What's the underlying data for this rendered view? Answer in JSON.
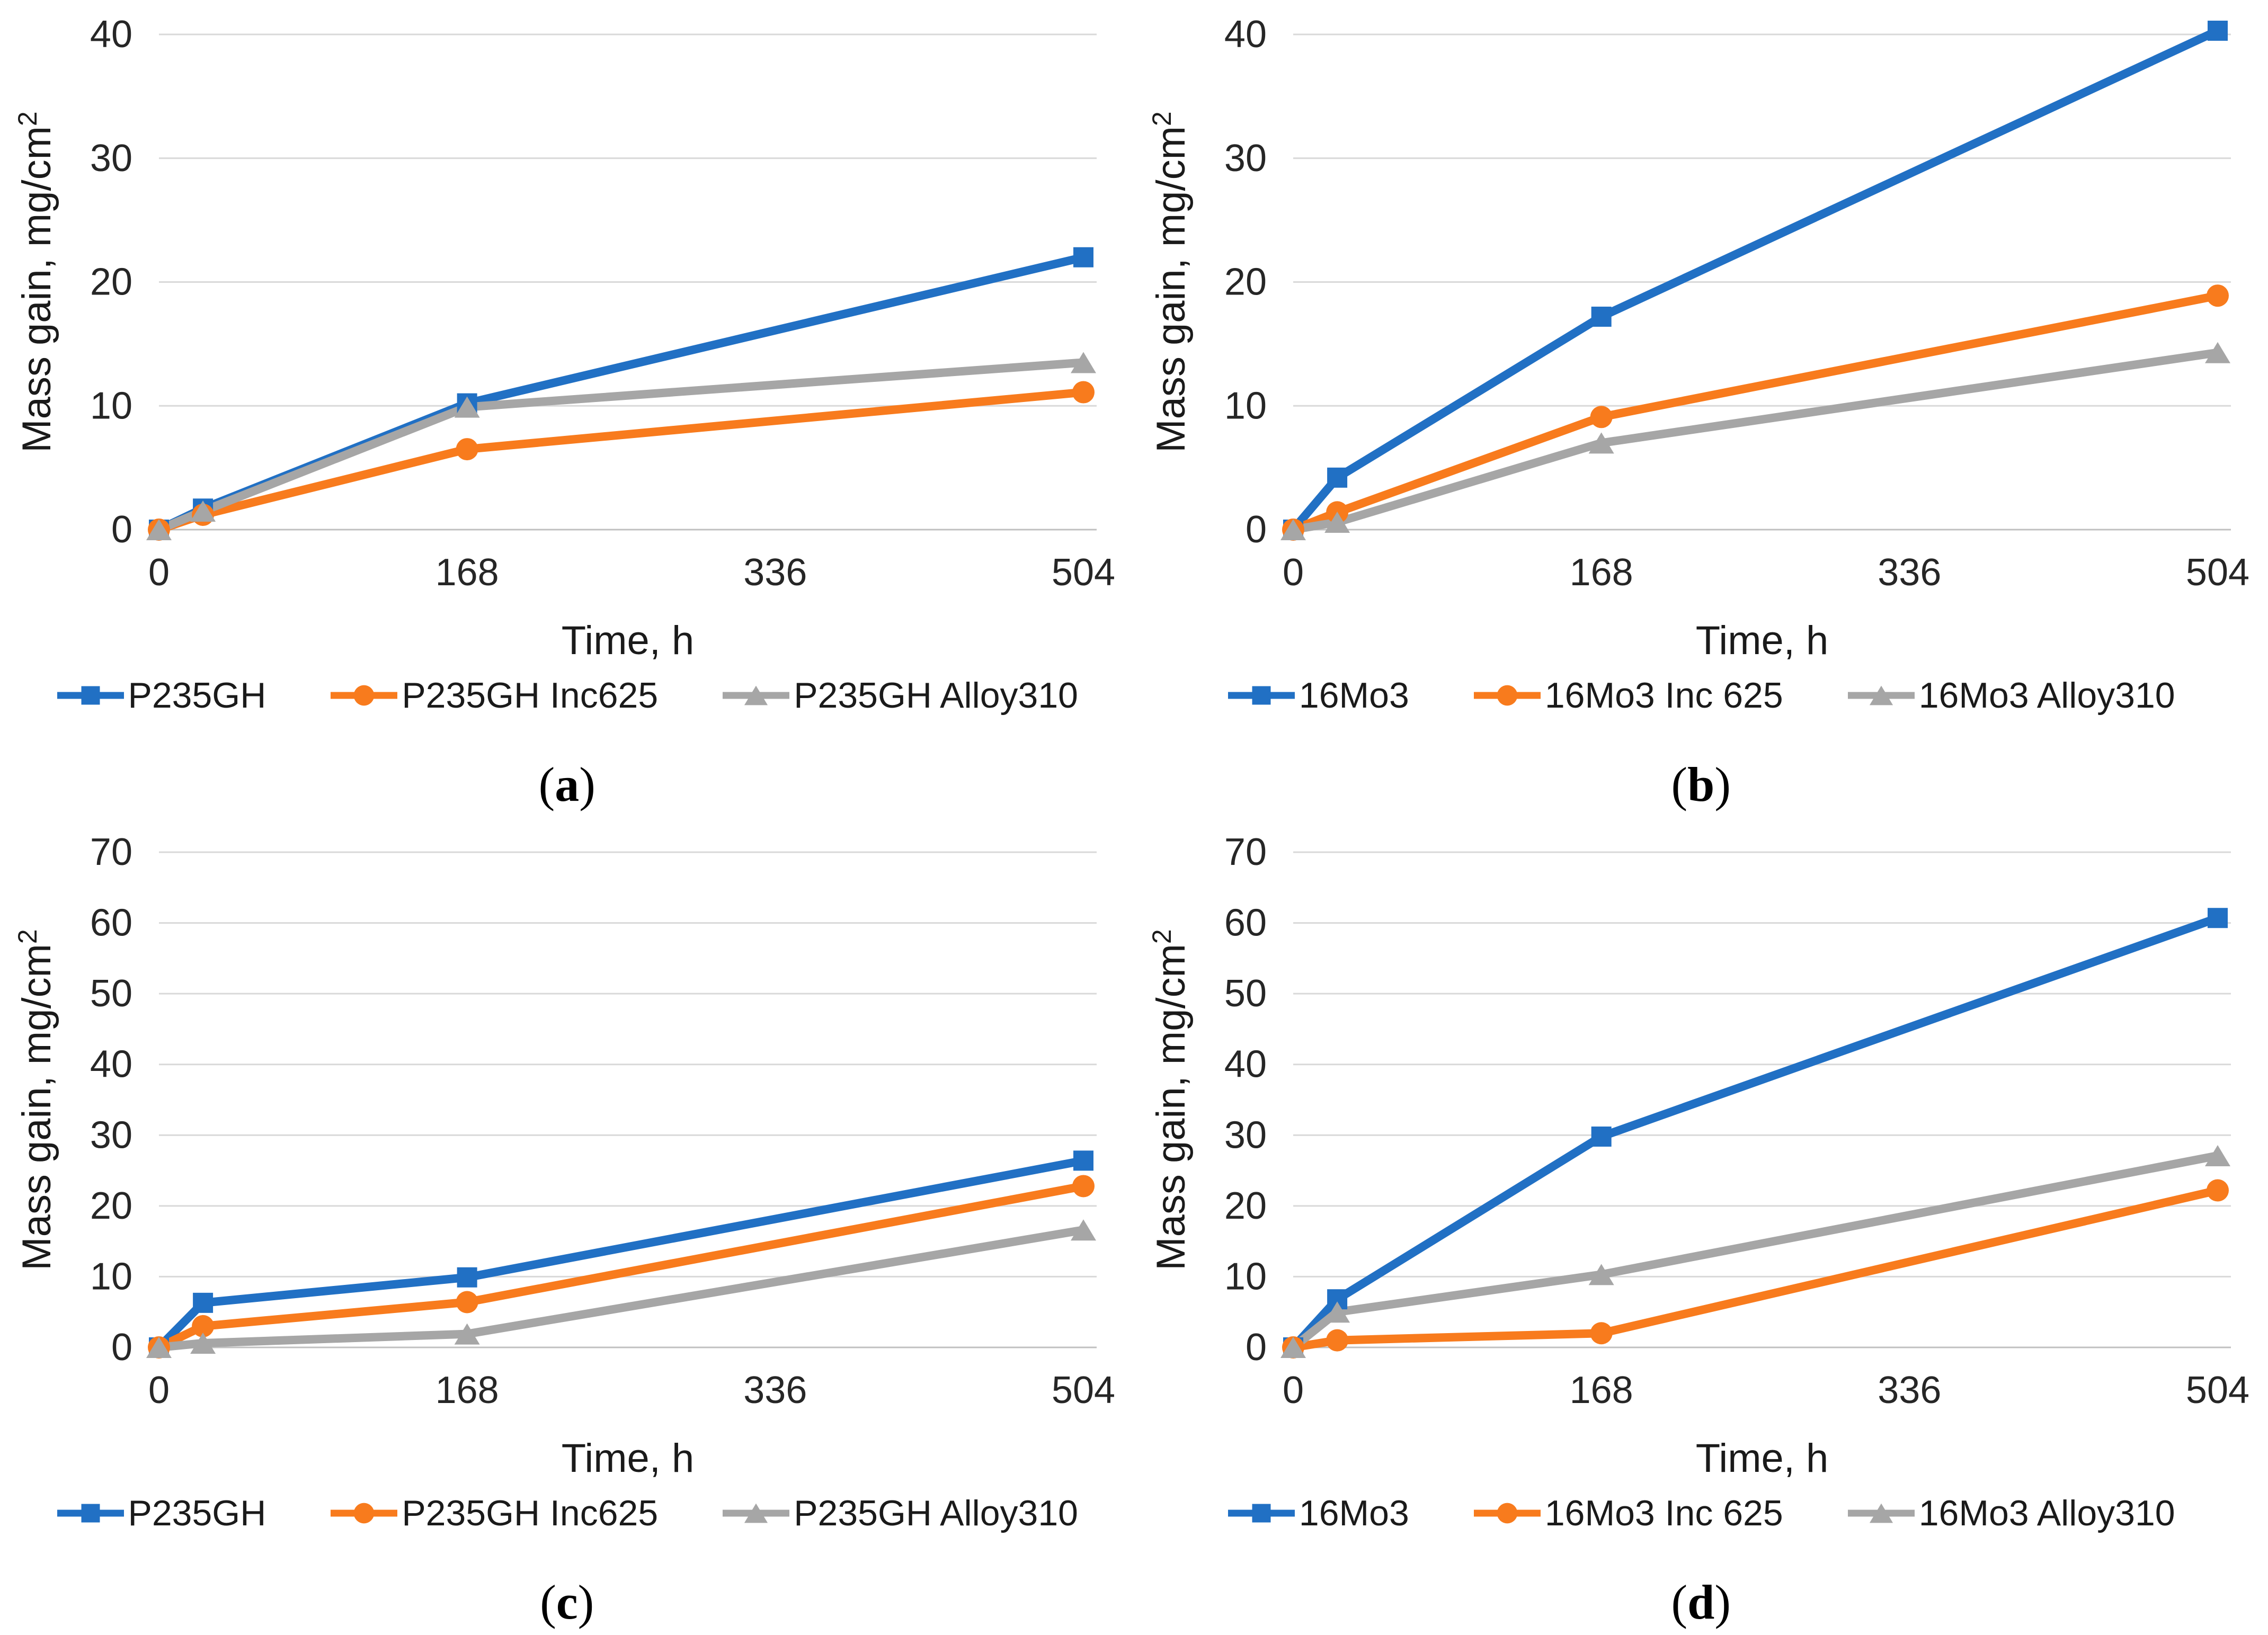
{
  "figure_colors": {
    "blue": "#2170C4",
    "orange": "#F87B1D",
    "gray": "#A6A6A6",
    "gridline": "#D9D9D9",
    "zero_line": "#C0C0C0",
    "tick_text": "#262626",
    "axis_title_text": "#1A1A1A"
  },
  "chart_data": [
    {
      "type": "line",
      "caption": {
        "open": "(",
        "letter": "a",
        "close": ")"
      },
      "xlabel": "Time, h",
      "ylabel_main": "Mass gain, mg/cm",
      "ylabel_sup": "2",
      "ylim": [
        0,
        40
      ],
      "yticks": [
        0,
        10,
        20,
        30,
        40
      ],
      "xticks": [
        0,
        168,
        336,
        504
      ],
      "x": [
        0,
        24,
        168,
        504
      ],
      "grid": true,
      "legend_position": "bottom",
      "series": [
        {
          "name": "P235GH",
          "color": "#2170C4",
          "marker": "square",
          "values": [
            0,
            1.7,
            10.2,
            22.0
          ]
        },
        {
          "name": "P235GH Inc625",
          "color": "#F87B1D",
          "marker": "circle",
          "values": [
            0,
            1.2,
            6.5,
            11.1
          ]
        },
        {
          "name": "P235GH Alloy310",
          "color": "#A6A6A6",
          "marker": "triangle",
          "values": [
            0,
            1.5,
            9.9,
            13.5
          ]
        }
      ]
    },
    {
      "type": "line",
      "caption": {
        "open": "(",
        "letter": "b",
        "close": ")"
      },
      "xlabel": "Time, h",
      "ylabel_main": "Mass gain, mg/cm",
      "ylabel_sup": "2",
      "ylim": [
        0,
        40
      ],
      "yticks": [
        0,
        10,
        20,
        30,
        40
      ],
      "xticks": [
        0,
        168,
        336,
        504
      ],
      "x": [
        0,
        24,
        168,
        504
      ],
      "grid": true,
      "legend_position": "bottom",
      "series": [
        {
          "name": "16Mo3",
          "color": "#2170C4",
          "marker": "square",
          "values": [
            0,
            4.2,
            17.2,
            40.3
          ]
        },
        {
          "name": "16Mo3 Inc 625",
          "color": "#F87B1D",
          "marker": "circle",
          "values": [
            0,
            1.4,
            9.1,
            18.9
          ]
        },
        {
          "name": "16Mo3 Alloy310",
          "color": "#A6A6A6",
          "marker": "triangle",
          "values": [
            0,
            0.6,
            7.0,
            14.3
          ]
        }
      ]
    },
    {
      "type": "line",
      "caption": {
        "open": "(",
        "letter": "c",
        "close": ")"
      },
      "xlabel": "Time, h",
      "ylabel_main": "Mass gain, mg/cm",
      "ylabel_sup": "2",
      "ylim": [
        0,
        70
      ],
      "yticks": [
        0,
        10,
        20,
        30,
        40,
        50,
        60,
        70
      ],
      "xticks": [
        0,
        168,
        336,
        504
      ],
      "x": [
        0,
        24,
        168,
        504
      ],
      "grid": true,
      "legend_position": "bottom",
      "series": [
        {
          "name": "P235GH",
          "color": "#2170C4",
          "marker": "square",
          "values": [
            0,
            6.3,
            9.9,
            26.4
          ]
        },
        {
          "name": "P235GH Inc625",
          "color": "#F87B1D",
          "marker": "circle",
          "values": [
            0,
            3.0,
            6.4,
            22.8
          ]
        },
        {
          "name": "P235GH Alloy310",
          "color": "#A6A6A6",
          "marker": "triangle",
          "values": [
            0,
            0.6,
            1.9,
            16.6
          ]
        }
      ]
    },
    {
      "type": "line",
      "caption": {
        "open": "(",
        "letter": "d",
        "close": ")"
      },
      "xlabel": "Time, h",
      "ylabel_main": "Mass gain, mg/cm",
      "ylabel_sup": "2",
      "ylim": [
        0,
        70
      ],
      "yticks": [
        0,
        10,
        20,
        30,
        40,
        50,
        60,
        70
      ],
      "xticks": [
        0,
        168,
        336,
        504
      ],
      "x": [
        0,
        24,
        168,
        504
      ],
      "grid": true,
      "legend_position": "bottom",
      "series": [
        {
          "name": "16Mo3",
          "color": "#2170C4",
          "marker": "square",
          "values": [
            0,
            6.8,
            29.8,
            60.7
          ]
        },
        {
          "name": "16Mo3 Inc 625",
          "color": "#F87B1D",
          "marker": "circle",
          "values": [
            0,
            1.0,
            2.0,
            22.2
          ]
        },
        {
          "name": "16Mo3 Alloy310",
          "color": "#A6A6A6",
          "marker": "triangle",
          "values": [
            0,
            5.0,
            10.3,
            27.1
          ]
        }
      ]
    }
  ]
}
